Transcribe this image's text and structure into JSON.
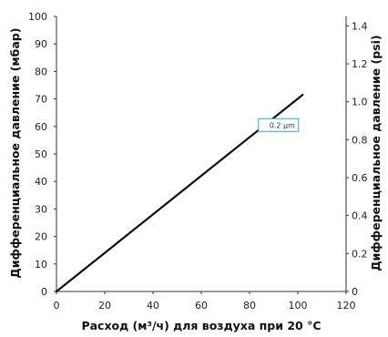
{
  "chart_data": {
    "type": "line",
    "xlabel": "Расход (м³/ч) для воздуха при 20 °C",
    "ylabel": "Дифференциальное давление (мбар)",
    "y2label": "Дифференциальное давление (psi)",
    "xlim": [
      0,
      120
    ],
    "ylim": [
      0,
      100
    ],
    "y2lim": [
      0,
      1.45
    ],
    "grid": false,
    "x_ticks": [
      "0",
      "20",
      "40",
      "60",
      "80",
      "100",
      "120"
    ],
    "y_ticks": [
      "0",
      "10",
      "20",
      "30",
      "40",
      "50",
      "60",
      "70",
      "80",
      "90",
      "100"
    ],
    "y2_ticks": [
      "0",
      "0.2",
      "0.4",
      "0.6",
      "0.8",
      "1.0",
      "1.2",
      "1.4"
    ],
    "series": [
      {
        "name": "0.2 µm",
        "color": "#111111",
        "x": [
          0,
          102
        ],
        "y": [
          0,
          71.5
        ]
      }
    ],
    "annotations": [
      {
        "text": "0.2 µm",
        "x": 92,
        "y": 60.5,
        "border_color": "#35aac8"
      }
    ]
  }
}
